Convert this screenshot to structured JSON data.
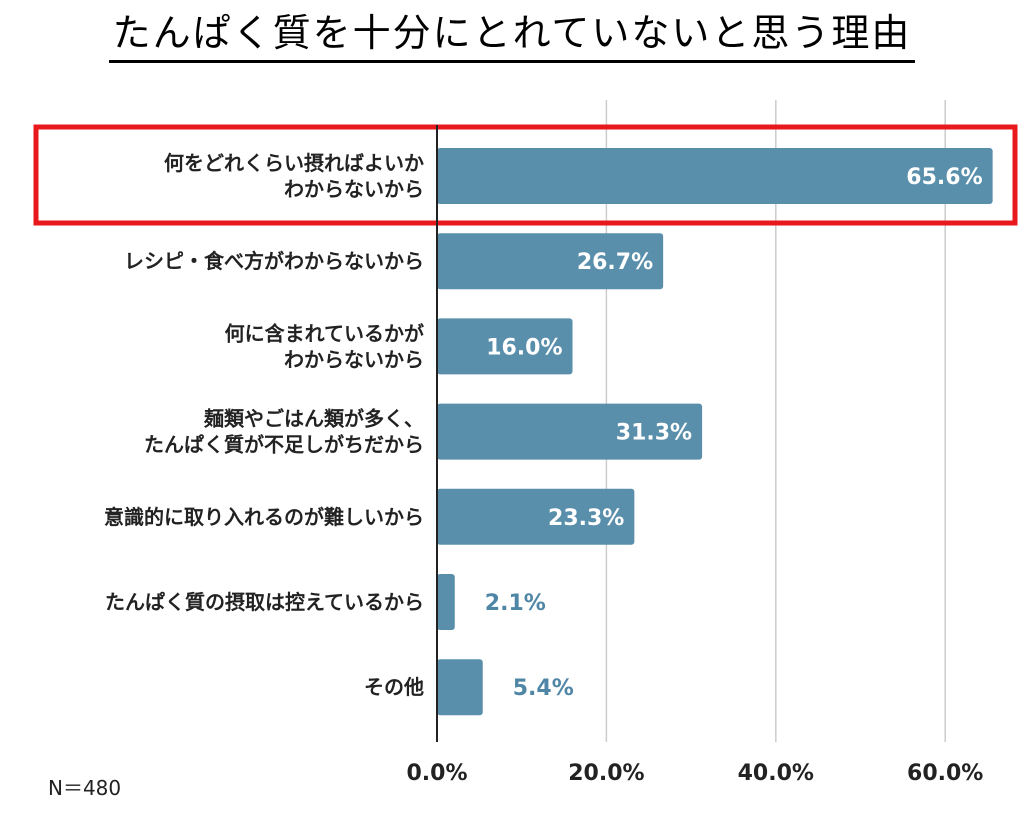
{
  "title": "たんぱく質を十分にとれていないと思う理由",
  "note": "N＝480",
  "colors": {
    "bar": "#5a8fab",
    "highlight": "#e8181c",
    "grid": "#cccccc",
    "axis": "#222222",
    "value_outside": "#4f86a6"
  },
  "chart_data": {
    "type": "bar",
    "orientation": "horizontal",
    "title": "たんぱく質を十分にとれていないと思う理由",
    "categories": [
      "何をどれくらい摂ればよいか\nわからないから",
      "レシピ・食べ方がわからないから",
      "何に含まれているかが\nわからないから",
      "麺類やごはん類が多く、\nたんぱく質が不足しがちだから",
      "意識的に取り入れるのが難しいから",
      "たんぱく質の摂取は控えているから",
      "その他"
    ],
    "values": [
      65.6,
      26.7,
      16.0,
      31.3,
      23.3,
      2.1,
      5.4
    ],
    "value_labels": [
      "65.6%",
      "26.7%",
      "16.0%",
      "31.3%",
      "23.3%",
      "2.1%",
      "5.4%"
    ],
    "xlim": [
      0,
      60
    ],
    "xticks": [
      0,
      20,
      40,
      60
    ],
    "xtick_labels": [
      "0.0%",
      "20.0%",
      "40.0%",
      "60.0%"
    ],
    "grid": true,
    "highlighted_category_index": 0
  }
}
